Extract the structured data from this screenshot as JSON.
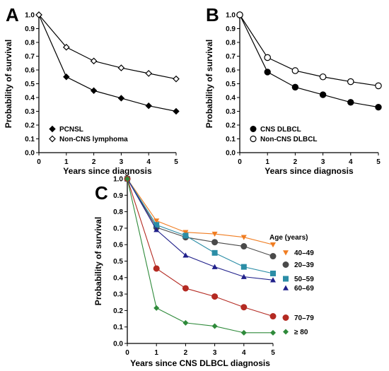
{
  "chart_data": [
    {
      "panel": "A",
      "type": "line",
      "xlabel": "Years since diagnosis",
      "ylabel": "Probability of survival",
      "xlim": [
        0,
        5
      ],
      "ylim": [
        0,
        1.0
      ],
      "xticks": [
        "0",
        "1",
        "2",
        "3",
        "4",
        "5"
      ],
      "yticks": [
        "0.0",
        "0.1",
        "0.2",
        "0.3",
        "0.4",
        "0.5",
        "0.6",
        "0.7",
        "0.8",
        "0.9",
        "1.0"
      ],
      "grid": false,
      "legend_position": "bottom-left",
      "x": [
        0,
        1,
        2,
        3,
        4,
        5
      ],
      "series": [
        {
          "name": "PCNSL",
          "marker": "filled-diamond",
          "color": "#000000",
          "values": [
            1.0,
            0.55,
            0.45,
            0.395,
            0.34,
            0.3
          ]
        },
        {
          "name": "Non-CNS lymphoma",
          "marker": "open-diamond",
          "color": "#000000",
          "values": [
            1.0,
            0.765,
            0.665,
            0.615,
            0.575,
            0.535
          ]
        }
      ]
    },
    {
      "panel": "B",
      "type": "line",
      "xlabel": "Years since diagnosis",
      "ylabel": "Probability of survival",
      "xlim": [
        0,
        5
      ],
      "ylim": [
        0,
        1.0
      ],
      "xticks": [
        "0",
        "1",
        "2",
        "3",
        "4",
        "5"
      ],
      "yticks": [
        "0.0",
        "0.1",
        "0.2",
        "0.3",
        "0.4",
        "0.5",
        "0.6",
        "0.7",
        "0.8",
        "0.9",
        "1.0"
      ],
      "grid": false,
      "legend_position": "bottom-left",
      "x": [
        0,
        1,
        2,
        3,
        4,
        5
      ],
      "series": [
        {
          "name": "CNS DLBCL",
          "marker": "filled-circle",
          "color": "#000000",
          "values": [
            1.0,
            0.585,
            0.475,
            0.42,
            0.365,
            0.33
          ]
        },
        {
          "name": "Non-CNS DLBCL",
          "marker": "open-circle",
          "color": "#000000",
          "values": [
            1.0,
            0.69,
            0.595,
            0.55,
            0.515,
            0.485
          ]
        }
      ]
    },
    {
      "panel": "C",
      "type": "line",
      "xlabel": "Years since CNS DLBCL diagnosis",
      "ylabel": "Probability of survival",
      "xlim": [
        0,
        5
      ],
      "ylim": [
        0,
        1.0
      ],
      "xticks": [
        "0",
        "1",
        "2",
        "3",
        "4",
        "5"
      ],
      "yticks": [
        "0.0",
        "0.1",
        "0.2",
        "0.3",
        "0.4",
        "0.5",
        "0.6",
        "0.7",
        "0.8",
        "0.9",
        "1.0"
      ],
      "grid": false,
      "legend_title": "Age (years)",
      "legend_position": "right",
      "x": [
        0,
        1,
        2,
        3,
        4,
        5
      ],
      "series": [
        {
          "name": "40–49",
          "marker": "triangle-down",
          "color": "#f07d22",
          "values": [
            1.0,
            0.745,
            0.675,
            0.665,
            0.645,
            0.6
          ]
        },
        {
          "name": "20–39",
          "marker": "circle",
          "color": "#4a4a4a",
          "values": [
            1.0,
            0.705,
            0.645,
            0.615,
            0.59,
            0.53
          ]
        },
        {
          "name": "50–59",
          "marker": "square",
          "color": "#2b8da6",
          "values": [
            1.0,
            0.72,
            0.655,
            0.55,
            0.465,
            0.425
          ]
        },
        {
          "name": "60–69",
          "marker": "triangle-up",
          "color": "#1f1f8a",
          "values": [
            1.0,
            0.69,
            0.535,
            0.465,
            0.405,
            0.385
          ]
        },
        {
          "name": "70–79",
          "marker": "circle",
          "color": "#b42a22",
          "values": [
            1.0,
            0.455,
            0.335,
            0.285,
            0.22,
            0.165
          ]
        },
        {
          "name": "≥ 80",
          "marker": "diamond",
          "color": "#2e8a3a",
          "values": [
            1.0,
            0.215,
            0.125,
            0.105,
            0.065,
            0.065
          ]
        }
      ]
    }
  ]
}
